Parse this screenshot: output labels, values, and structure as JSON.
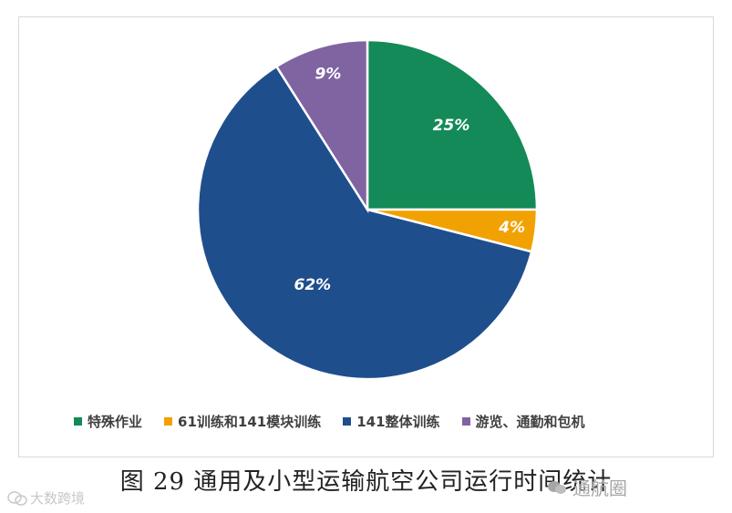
{
  "chart_data": {
    "type": "pie",
    "categories": [
      "特殊作业",
      "61训练和141模块训练",
      "141整体训练",
      "游览、通勤和包机"
    ],
    "values": [
      25,
      4,
      62,
      9
    ],
    "labels": [
      "25%",
      "4%",
      "62%",
      "9%"
    ],
    "colors": [
      "#138a57",
      "#f2a102",
      "#1f4e8c",
      "#8064a2"
    ],
    "label_color": "#ffffff",
    "legend": {
      "position": "bottom",
      "entries": [
        "特殊作业",
        "61训练和141模块训练",
        "141整体训练",
        "游览、通勤和包机"
      ]
    }
  },
  "caption": "图 29  通用及小型运输航空公司运行时间统计",
  "watermarks": {
    "left": "大数跨境",
    "right": "通航圈",
    "left_icon": "wechat-icon",
    "right_icon": "wechat-icon"
  }
}
